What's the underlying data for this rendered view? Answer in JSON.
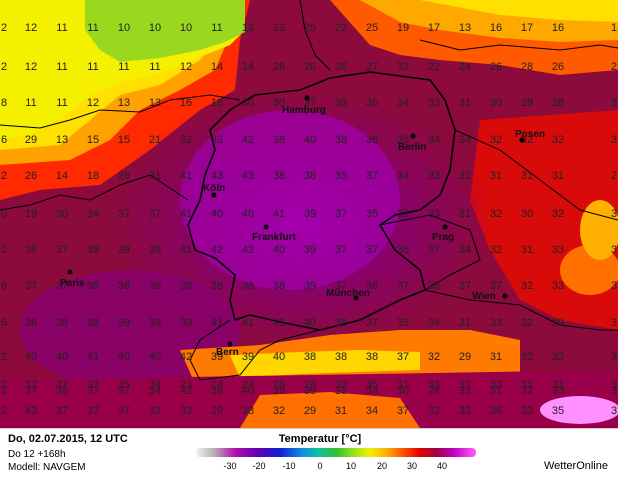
{
  "info": {
    "date_line": "Do, 02.07.2015, 12 UTC",
    "run_line": "Do 12 +168h",
    "model_line": "Modell: NAVGEM"
  },
  "legend": {
    "title": "Temperatur [°C]",
    "ticks": [
      "-30",
      "-20",
      "-10",
      "0",
      "10",
      "20",
      "30",
      "40"
    ]
  },
  "brand": "WetterOnline",
  "cities": [
    "Hamburg",
    "Berlin",
    "Posen",
    "Köln",
    "Frankfurt",
    "Prag",
    "Paris",
    "München",
    "Wien",
    "Bern"
  ],
  "values": [
    [
      "2",
      "12",
      "11",
      "11",
      "10",
      "10",
      "10",
      "11",
      "13",
      "23",
      "25",
      "22",
      "25",
      "19",
      "17",
      "13",
      "16",
      "17",
      "16",
      "1"
    ],
    [
      "2",
      "12",
      "11",
      "11",
      "11",
      "11",
      "12",
      "14",
      "14",
      "26",
      "26",
      "36",
      "27",
      "32",
      "22",
      "24",
      "26",
      "28",
      "26",
      "2"
    ],
    [
      "8",
      "11",
      "11",
      "12",
      "13",
      "13",
      "16",
      "18",
      "30",
      "30",
      "37",
      "39",
      "36",
      "34",
      "33",
      "31",
      "30",
      "29",
      "28",
      "2"
    ],
    [
      "6",
      "29",
      "13",
      "15",
      "15",
      "21",
      "32",
      "33",
      "42",
      "38",
      "40",
      "38",
      "36",
      "35",
      "34",
      "34",
      "32",
      "32",
      "32",
      "3"
    ],
    [
      "2",
      "26",
      "14",
      "18",
      "28",
      "31",
      "41",
      "43",
      "43",
      "38",
      "38",
      "35",
      "37",
      "34",
      "33",
      "32",
      "31",
      "31",
      "31",
      "2"
    ],
    [
      "0",
      "19",
      "30",
      "34",
      "37",
      "37",
      "41",
      "40",
      "40",
      "41",
      "39",
      "37",
      "35",
      "33",
      "33",
      "31",
      "32",
      "30",
      "32",
      "3"
    ],
    [
      "2",
      "38",
      "37",
      "39",
      "39",
      "39",
      "41",
      "42",
      "42",
      "40",
      "39",
      "37",
      "37",
      "36",
      "37",
      "34",
      "32",
      "31",
      "33",
      "3"
    ],
    [
      "6",
      "37",
      "37",
      "38",
      "38",
      "38",
      "38",
      "38",
      "38",
      "38",
      "39",
      "37",
      "38",
      "37",
      "38",
      "37",
      "37",
      "32",
      "33",
      "3"
    ],
    [
      "5",
      "38",
      "38",
      "38",
      "39",
      "39",
      "39",
      "41",
      "41",
      "41",
      "40",
      "38",
      "37",
      "35",
      "34",
      "31",
      "33",
      "32",
      "29",
      "3"
    ],
    [
      "2",
      "40",
      "40",
      "41",
      "40",
      "40",
      "42",
      "39",
      "39",
      "40",
      "38",
      "38",
      "38",
      "37",
      "32",
      "29",
      "31",
      "32",
      "32",
      "3"
    ],
    [
      "2",
      "37",
      "38",
      "37",
      "37",
      "34",
      "42",
      "39",
      "40",
      "39",
      "39",
      "38",
      "34",
      "30",
      "28",
      "33",
      "31",
      "32",
      "33",
      "3"
    ],
    [
      "2",
      "37",
      "37",
      "37",
      "35",
      "34",
      "23",
      "24",
      "24",
      "26",
      "28",
      "32",
      "35",
      "31",
      "33",
      "37",
      "33",
      "33",
      "31",
      "3"
    ],
    [
      "2",
      "43",
      "37",
      "37",
      "37",
      "33",
      "33",
      "29",
      "38",
      "32",
      "29",
      "31",
      "34",
      "37",
      "32",
      "33",
      "36",
      "33",
      "35",
      "3"
    ]
  ]
}
